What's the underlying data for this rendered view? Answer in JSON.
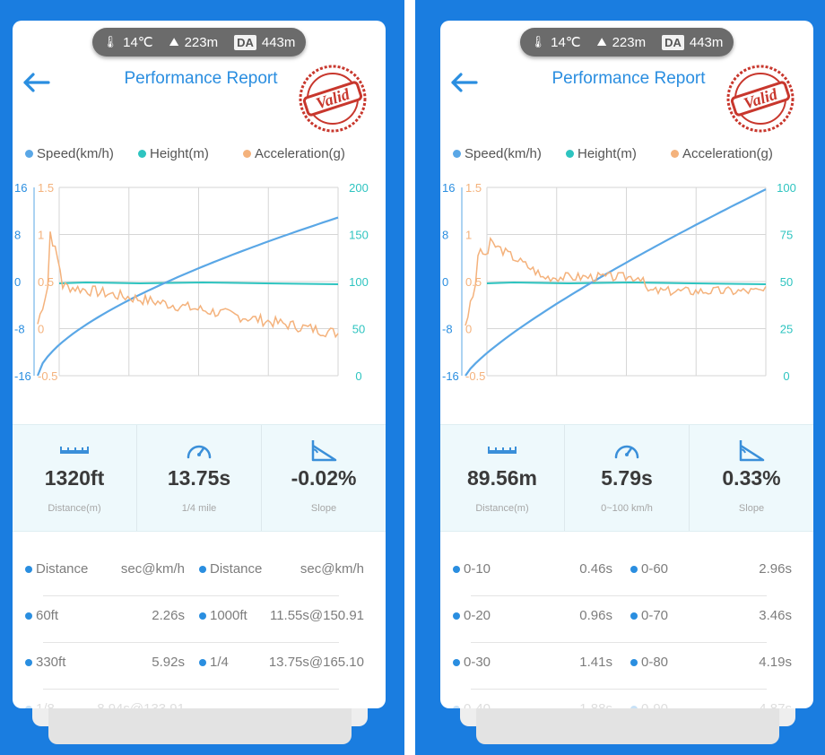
{
  "left": {
    "env": {
      "temp": "14℃",
      "altitude": "223m",
      "da_badge": "DA",
      "da_value": "443m"
    },
    "title": "Performance Report",
    "stamp_text": "Valid",
    "legend": [
      {
        "label": "Speed(km/h)",
        "color": "#5aa7e6"
      },
      {
        "label": "Height(m)",
        "color": "#2ec4c0"
      },
      {
        "label": "Acceleration(g)",
        "color": "#f4b27c"
      }
    ],
    "axes": {
      "height_ticks": [
        "16",
        "8",
        "0",
        "-8",
        "-16"
      ],
      "accel_ticks": [
        "1.5",
        "1",
        "0.5",
        "0",
        "-0.5"
      ],
      "speed_ticks": [
        "200",
        "150",
        "100",
        "50",
        "0"
      ]
    },
    "stats": [
      {
        "icon": "ruler-icon",
        "value": "1320ft",
        "label": "Distance(m)"
      },
      {
        "icon": "speedometer-icon",
        "value": "13.75s",
        "label": "1/4 mile"
      },
      {
        "icon": "slope-icon",
        "value": "-0.02%",
        "label": "Slope"
      }
    ],
    "table": [
      {
        "a": "Distance",
        "av": "sec@km/h",
        "b": "Distance",
        "bv": "sec@km/h"
      },
      {
        "a": "60ft",
        "av": "2.26s",
        "b": "1000ft",
        "bv": "11.55s@150.91"
      },
      {
        "a": "330ft",
        "av": "5.92s",
        "b": "1/4",
        "bv": "13.75s@165.10"
      },
      {
        "a": "1/8",
        "av": "8.94s@133.91",
        "b": "",
        "bv": ""
      }
    ]
  },
  "right": {
    "env": {
      "temp": "14℃",
      "altitude": "223m",
      "da_badge": "DA",
      "da_value": "443m"
    },
    "title": "Performance Report",
    "stamp_text": "Valid",
    "legend": [
      {
        "label": "Speed(km/h)",
        "color": "#5aa7e6"
      },
      {
        "label": "Height(m)",
        "color": "#2ec4c0"
      },
      {
        "label": "Acceleration(g)",
        "color": "#f4b27c"
      }
    ],
    "axes": {
      "height_ticks": [
        "16",
        "8",
        "0",
        "-8",
        "-16"
      ],
      "accel_ticks": [
        "1.5",
        "1",
        "0.5",
        "0",
        "-0.5"
      ],
      "speed_ticks": [
        "100",
        "75",
        "50",
        "25",
        "0"
      ]
    },
    "stats": [
      {
        "icon": "ruler-icon",
        "value": "89.56m",
        "label": "Distance(m)"
      },
      {
        "icon": "speedometer-icon",
        "value": "5.79s",
        "label": "0~100 km/h"
      },
      {
        "icon": "slope-icon",
        "value": "0.33%",
        "label": "Slope"
      }
    ],
    "table": [
      {
        "a": "0-10",
        "av": "0.46s",
        "b": "0-60",
        "bv": "2.96s"
      },
      {
        "a": "0-20",
        "av": "0.96s",
        "b": "0-70",
        "bv": "3.46s"
      },
      {
        "a": "0-30",
        "av": "1.41s",
        "b": "0-80",
        "bv": "4.19s"
      },
      {
        "a": "0-40",
        "av": "1.88s",
        "b": "0-90",
        "bv": "4.87s"
      }
    ]
  },
  "colors": {
    "accent": "#2a8ee0",
    "stamp": "#c8372d",
    "background": "#1a7de0"
  }
}
